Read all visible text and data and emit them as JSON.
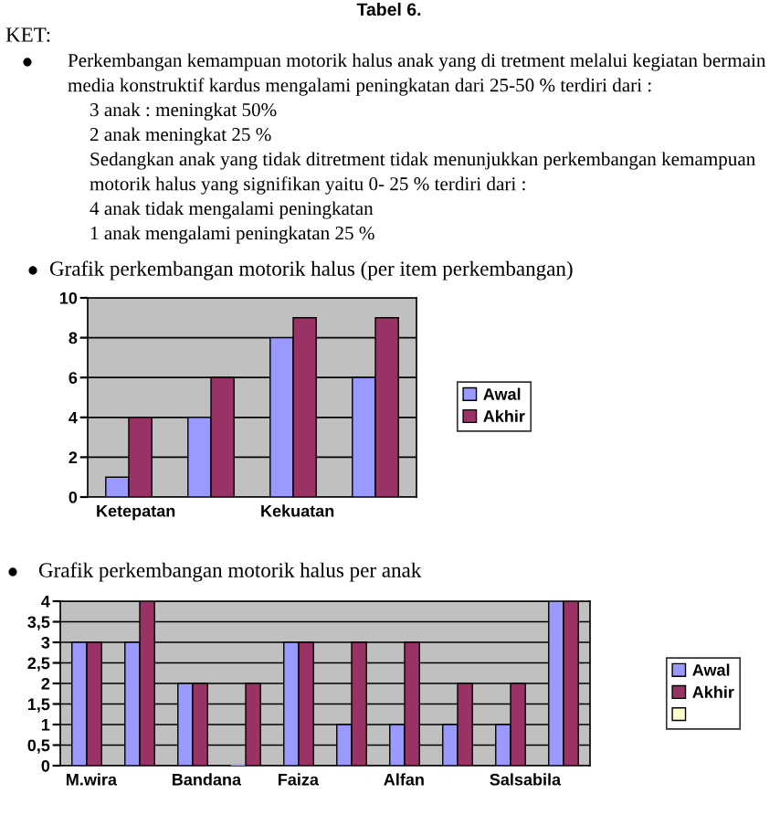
{
  "chart_data": [
    {
      "type": "bar",
      "title": "Grafik perkembangan motorik halus (per item perkembangan)",
      "annotations": [
        "Tabel 6.",
        "KET:",
        "Perkembangan kemampuan motorik halus anak yang di tretment melalui kegiatan bermain",
        "media konstruktif kardus mengalami peningkatan dari 25-50 % terdiri dari :",
        "3 anak : meningkat 50%",
        "2 anak meningkat 25 %",
        "Sedangkan anak yang tidak ditretment tidak menunjukkan perkembangan kemampuan",
        "motorik halus yang signifikan yaitu 0- 25 % terdiri dari :",
        "4 anak tidak mengalami peningkatan",
        "1 anak mengalami peningkatan 25 %"
      ],
      "categories": [
        "Ketepatan",
        null,
        "Kekuatan",
        null
      ],
      "series": [
        {
          "name": "Awal",
          "color": "#9999ff",
          "values": [
            1,
            4,
            8,
            6
          ]
        },
        {
          "name": "Akhir",
          "color": "#993366",
          "values": [
            4,
            6,
            9,
            9
          ]
        }
      ],
      "ylim": [
        0,
        10
      ],
      "yticks": [
        0,
        2,
        4,
        6,
        8,
        10
      ],
      "grid": "y",
      "legend": "right"
    },
    {
      "type": "bar",
      "title": "Grafik perkembangan motorik halus per anak",
      "categories": [
        "M.wira",
        null,
        "Bandana",
        null,
        "Faiza",
        null,
        "Alfan",
        null,
        "Salsabila",
        null
      ],
      "series": [
        {
          "name": "Awal",
          "color": "#9999ff",
          "values": [
            3,
            3,
            2,
            0,
            3,
            1,
            1,
            1,
            1,
            4
          ]
        },
        {
          "name": "Akhir",
          "color": "#993366",
          "values": [
            3,
            4,
            2,
            2,
            3,
            3,
            3,
            2,
            2,
            4
          ]
        },
        {
          "color": "#ffffcc",
          "values": [
            null,
            null,
            null,
            null,
            null,
            null,
            null,
            null,
            null,
            null
          ]
        }
      ],
      "ylim": [
        0,
        4
      ],
      "yticks": [
        0,
        {
          "value": 0.5,
          "label": "0,5"
        },
        1,
        {
          "value": 1.5,
          "label": "1,5"
        },
        2,
        {
          "value": 2.5,
          "label": "2,5"
        },
        3,
        {
          "value": 3.5,
          "label": "3,5"
        },
        4
      ],
      "grid": "y",
      "legend": "right"
    }
  ]
}
